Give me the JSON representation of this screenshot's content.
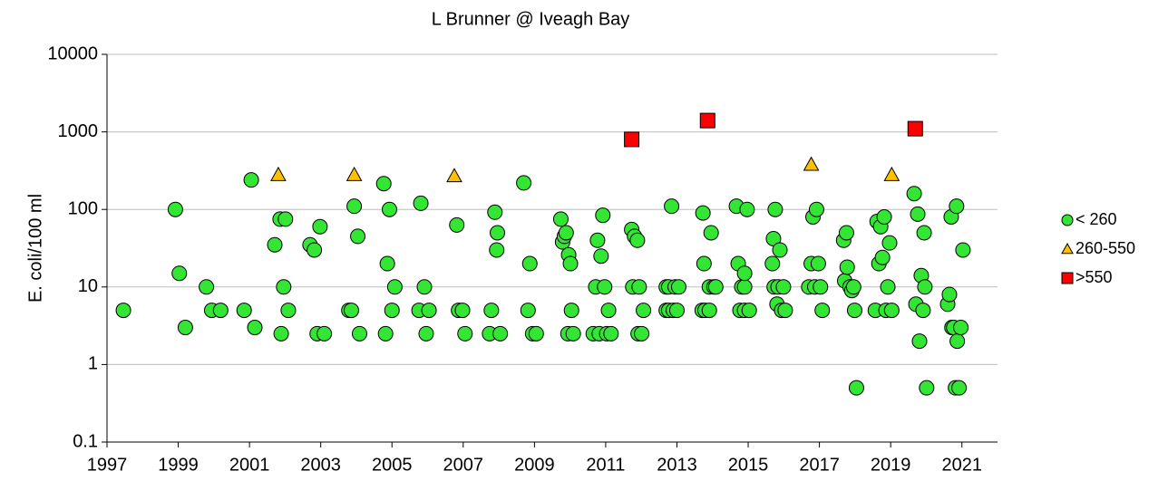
{
  "chart_data": {
    "type": "scatter",
    "title": "L Brunner @ Iveagh Bay",
    "y_label": "E. coli/100 ml",
    "log_y": true,
    "grid": true,
    "legend": "right",
    "xlim": [
      1997,
      2022
    ],
    "xticks": [
      1997,
      1999,
      2001,
      2003,
      2005,
      2007,
      2009,
      2011,
      2013,
      2015,
      2017,
      2019,
      2021
    ],
    "ylim": [
      0.1,
      10000
    ],
    "yticks": [
      0.1,
      1,
      10,
      100,
      1000,
      10000
    ],
    "series": [
      {
        "name": "< 260",
        "color": "#33e633",
        "marker": "circle",
        "x": [
          1997.46,
          1998.92,
          1999.03,
          1999.2,
          1999.79,
          1999.94,
          2000.19,
          2000.85,
          2001.05,
          2001.15,
          2001.71,
          2001.86,
          2001.89,
          2001.96,
          2002.01,
          2002.09,
          2002.7,
          2002.82,
          2002.9,
          2002.98,
          2003.1,
          2003.79,
          2003.86,
          2003.94,
          2004.04,
          2004.09,
          2004.77,
          2004.82,
          2004.87,
          2004.93,
          2005.0,
          2005.08,
          2005.76,
          2005.81,
          2005.91,
          2005.96,
          2006.04,
          2006.82,
          2006.87,
          2006.98,
          2007.05,
          2007.74,
          2007.79,
          2007.89,
          2007.94,
          2007.96,
          2008.04,
          2008.7,
          2008.82,
          2008.87,
          2008.95,
          2009.05,
          2009.74,
          2009.79,
          2009.84,
          2009.89,
          2009.94,
          2009.96,
          2010.01,
          2010.04,
          2010.09,
          2010.65,
          2010.72,
          2010.77,
          2010.82,
          2010.87,
          2010.92,
          2010.97,
          2011.03,
          2011.08,
          2011.15,
          2011.73,
          2011.76,
          2011.81,
          2011.89,
          2011.91,
          2011.94,
          2012.01,
          2012.06,
          2012.7,
          2012.7,
          2012.77,
          2012.77,
          2012.85,
          2012.9,
          2012.95,
          2013.0,
          2013.05,
          2013.71,
          2013.73,
          2013.76,
          2013.79,
          2013.91,
          2013.91,
          2013.96,
          2014.04,
          2014.09,
          2014.67,
          2014.72,
          2014.77,
          2014.82,
          2014.9,
          2014.9,
          2014.9,
          2014.97,
          2015.03,
          2015.68,
          2015.71,
          2015.73,
          2015.76,
          2015.81,
          2015.84,
          2015.89,
          2015.94,
          2015.99,
          2016.04,
          2016.7,
          2016.77,
          2016.82,
          2016.87,
          2016.92,
          2016.97,
          2017.03,
          2017.08,
          2017.68,
          2017.71,
          2017.76,
          2017.78,
          2017.86,
          2017.91,
          2017.96,
          2017.99,
          2018.04,
          2018.57,
          2018.62,
          2018.67,
          2018.72,
          2018.77,
          2018.82,
          2018.87,
          2018.92,
          2018.97,
          2019.03,
          2019.66,
          2019.71,
          2019.76,
          2019.81,
          2019.86,
          2019.91,
          2019.94,
          2019.96,
          2020.01,
          2020.6,
          2020.65,
          2020.7,
          2020.72,
          2020.77,
          2020.82,
          2020.85,
          2020.87,
          2020.92,
          2020.97,
          2021.03
        ],
        "values": [
          5,
          100,
          15,
          3,
          10,
          5,
          5,
          5,
          240,
          3,
          35,
          75,
          2.5,
          10,
          75,
          5,
          35,
          30,
          2.5,
          60,
          2.5,
          5,
          5,
          110,
          45,
          2.5,
          215,
          2.5,
          20,
          100,
          5,
          10,
          5,
          120,
          10,
          2.5,
          5,
          63,
          5,
          5,
          2.5,
          2.5,
          5,
          92,
          30,
          50,
          2.5,
          220,
          5,
          20,
          2.5,
          2.5,
          75,
          38,
          45,
          50,
          2.5,
          26,
          20,
          5,
          2.5,
          2.5,
          10,
          40,
          2.5,
          25,
          84,
          10,
          2.5,
          5,
          2.5,
          55,
          10,
          45,
          40,
          2.5,
          10,
          2.5,
          5,
          10,
          5,
          10,
          5,
          110,
          5,
          10,
          5,
          10,
          5,
          90,
          20,
          5,
          5,
          10,
          50,
          10,
          10,
          110,
          20,
          5,
          10,
          10,
          15,
          5,
          100,
          5,
          20,
          42,
          10,
          100,
          6,
          10,
          30,
          5,
          10,
          5,
          10,
          20,
          80,
          10,
          100,
          20,
          10,
          5,
          40,
          12,
          50,
          18,
          10,
          9,
          10,
          5,
          0.5,
          5,
          70,
          20,
          60,
          24,
          80,
          5,
          10,
          37,
          5,
          160,
          6,
          87,
          2,
          14,
          5,
          50,
          10,
          0.5,
          6,
          8,
          80,
          3,
          3,
          0.5,
          110,
          2,
          0.5,
          3,
          30
        ]
      },
      {
        "name": "260-550",
        "color": "#ffc000",
        "marker": "triangle",
        "x": [
          2001.81,
          2003.94,
          2006.75,
          2016.77,
          2019.03
        ],
        "values": [
          280,
          280,
          270,
          380,
          280
        ]
      },
      {
        "name": ">550",
        "color": "#ff0000",
        "marker": "square",
        "x": [
          2011.73,
          2013.86,
          2019.69
        ],
        "values": [
          800,
          1400,
          1100
        ]
      }
    ]
  }
}
